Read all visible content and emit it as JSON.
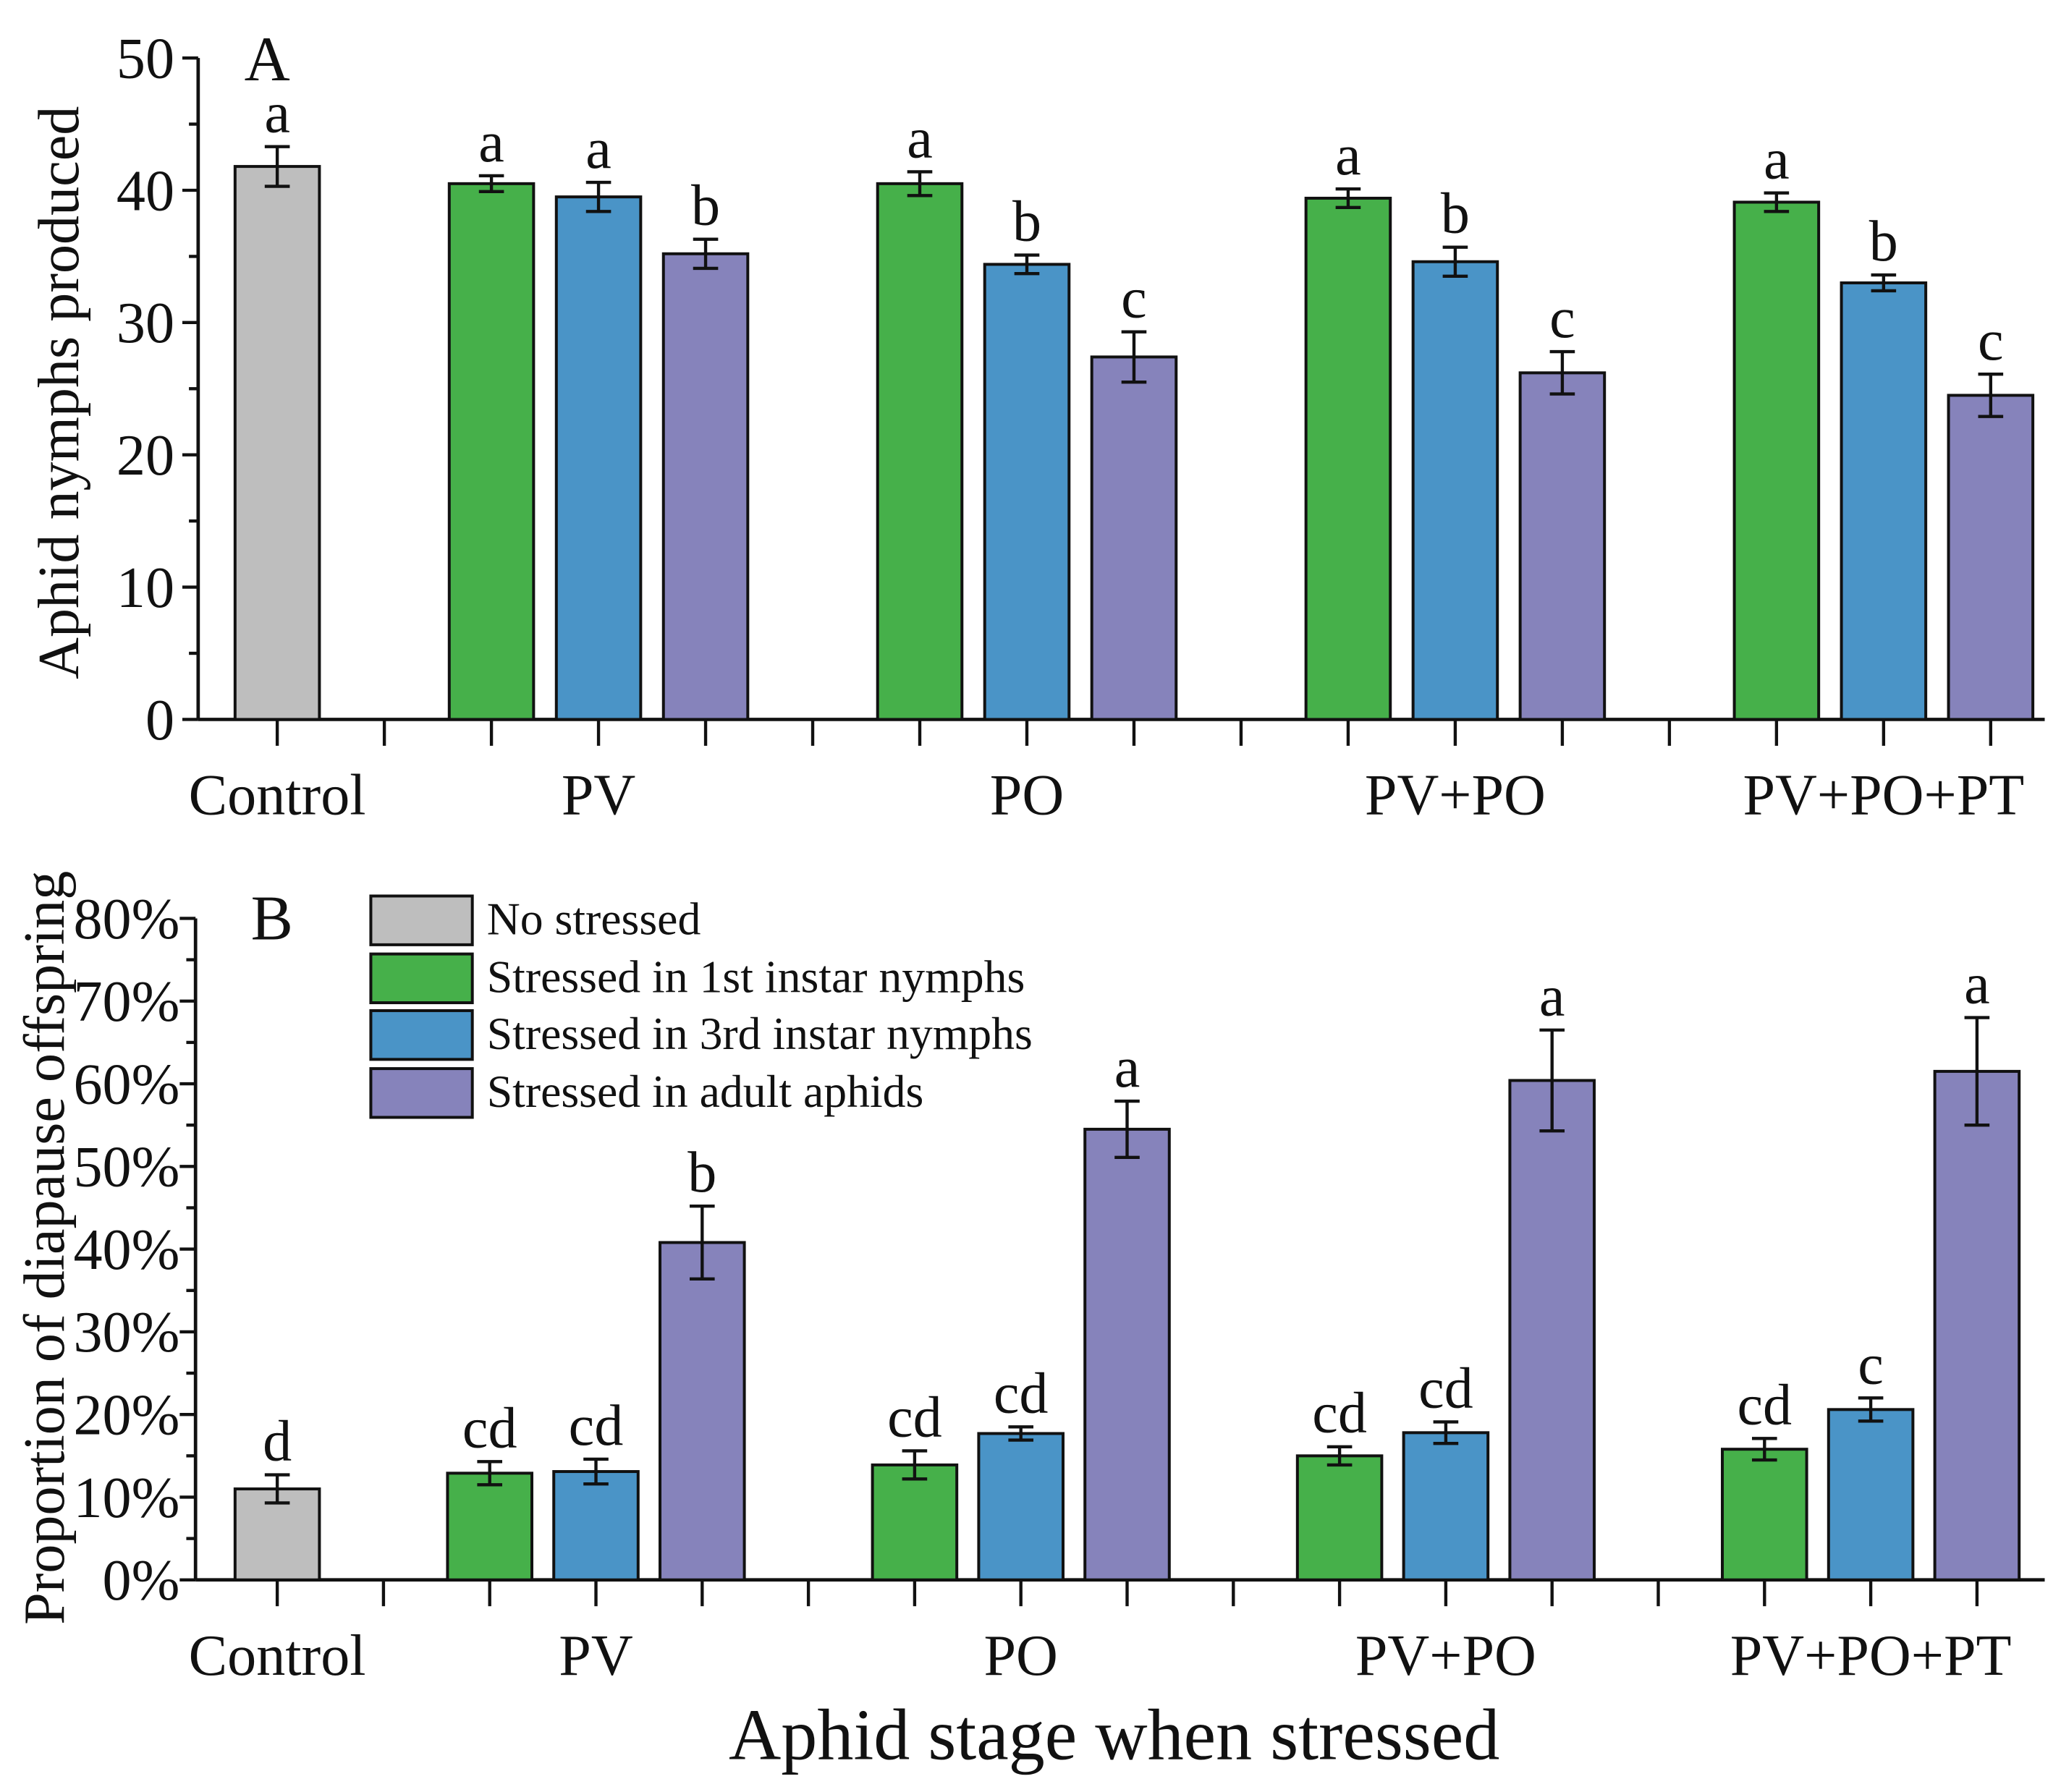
{
  "legend": {
    "items": [
      {
        "label": "No stressed",
        "color": "#BEBEBE"
      },
      {
        "label": "Stressed in 1st instar nymphs",
        "color": "#46B04A"
      },
      {
        "label": "Stressed in 3rd instar nymphs",
        "color": "#4A94C7"
      },
      {
        "label": "Stressed in adult aphids",
        "color": "#8683BB"
      }
    ]
  },
  "chart_data": [
    {
      "type": "bar",
      "panel_label": "A",
      "ylabel": "Aphid nymphs produced",
      "ylim": [
        0,
        50
      ],
      "yticks": [
        0,
        10,
        20,
        30,
        40,
        50
      ],
      "ytick_labels": [
        "0",
        "10",
        "20",
        "30",
        "40",
        "50"
      ],
      "categories": [
        "Control",
        "PV",
        "PO",
        "PV+PO",
        "PV+PO+PT"
      ],
      "groups": [
        {
          "bars": [
            {
              "series": 0,
              "value": 41.8,
              "error": 1.5,
              "letter": "a"
            }
          ]
        },
        {
          "bars": [
            {
              "series": 1,
              "value": 40.5,
              "error": 0.6,
              "letter": "a"
            },
            {
              "series": 2,
              "value": 39.5,
              "error": 1.1,
              "letter": "a"
            },
            {
              "series": 3,
              "value": 35.2,
              "error": 1.1,
              "letter": "b"
            }
          ]
        },
        {
          "bars": [
            {
              "series": 1,
              "value": 40.5,
              "error": 0.9,
              "letter": "a"
            },
            {
              "series": 2,
              "value": 34.4,
              "error": 0.7,
              "letter": "b"
            },
            {
              "series": 3,
              "value": 27.4,
              "error": 1.9,
              "letter": "c"
            }
          ]
        },
        {
          "bars": [
            {
              "series": 1,
              "value": 39.4,
              "error": 0.7,
              "letter": "a"
            },
            {
              "series": 2,
              "value": 34.6,
              "error": 1.1,
              "letter": "b"
            },
            {
              "series": 3,
              "value": 26.2,
              "error": 1.6,
              "letter": "c"
            }
          ]
        },
        {
          "bars": [
            {
              "series": 1,
              "value": 39.1,
              "error": 0.7,
              "letter": "a"
            },
            {
              "series": 2,
              "value": 33.0,
              "error": 0.6,
              "letter": "b"
            },
            {
              "series": 3,
              "value": 24.5,
              "error": 1.6,
              "letter": "c"
            }
          ]
        }
      ]
    },
    {
      "type": "bar",
      "panel_label": "B",
      "ylabel": "Proportion of diapause offspring",
      "xlabel": "Aphid stage when stressed",
      "ylim": [
        0,
        80
      ],
      "yticks": [
        0,
        10,
        20,
        30,
        40,
        50,
        60,
        70,
        80
      ],
      "ytick_labels": [
        "0%",
        "10%",
        "20%",
        "30%",
        "40%",
        "50%",
        "60%",
        "70%",
        "80%"
      ],
      "legend_position": "top-left",
      "categories": [
        "Control",
        "PV",
        "PO",
        "PV+PO",
        "PV+PO+PT"
      ],
      "groups": [
        {
          "bars": [
            {
              "series": 0,
              "value": 11.0,
              "error": 1.7,
              "letter": "d"
            }
          ]
        },
        {
          "bars": [
            {
              "series": 1,
              "value": 12.9,
              "error": 1.4,
              "letter": "cd"
            },
            {
              "series": 2,
              "value": 13.1,
              "error": 1.5,
              "letter": "cd"
            },
            {
              "series": 3,
              "value": 40.8,
              "error": 4.4,
              "letter": "b"
            }
          ]
        },
        {
          "bars": [
            {
              "series": 1,
              "value": 13.9,
              "error": 1.7,
              "letter": "cd"
            },
            {
              "series": 2,
              "value": 17.7,
              "error": 0.8,
              "letter": "cd"
            },
            {
              "series": 3,
              "value": 54.5,
              "error": 3.4,
              "letter": "a"
            }
          ]
        },
        {
          "bars": [
            {
              "series": 1,
              "value": 15.0,
              "error": 1.1,
              "letter": "cd"
            },
            {
              "series": 2,
              "value": 17.8,
              "error": 1.3,
              "letter": "cd"
            },
            {
              "series": 3,
              "value": 60.4,
              "error": 6.1,
              "letter": "a"
            }
          ]
        },
        {
          "bars": [
            {
              "series": 1,
              "value": 15.8,
              "error": 1.3,
              "letter": "cd"
            },
            {
              "series": 2,
              "value": 20.6,
              "error": 1.4,
              "letter": "c"
            },
            {
              "series": 3,
              "value": 61.5,
              "error": 6.5,
              "letter": "a"
            }
          ]
        }
      ]
    }
  ]
}
